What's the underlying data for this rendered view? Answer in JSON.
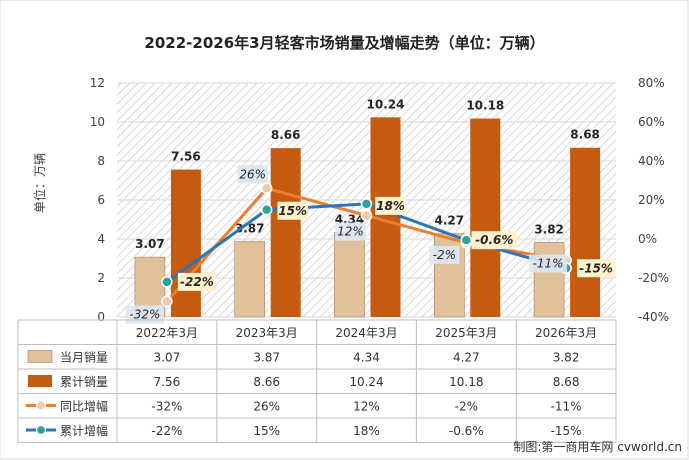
{
  "chart_data": {
    "type": "bar",
    "title": "2022-2026年3月轻客市场销量及增幅走势（单位：万辆）",
    "ylabel": "单位：万辆",
    "ylim": [
      0,
      12
    ],
    "y_ticks": [
      0,
      2,
      4,
      6,
      8,
      10,
      12
    ],
    "y2lim": [
      -40,
      80
    ],
    "y2_ticks": [
      "-40%",
      "-20%",
      "0%",
      "20%",
      "40%",
      "60%",
      "80%"
    ],
    "categories": [
      "2022年3月",
      "2023年3月",
      "2024年3月",
      "2025年3月",
      "2026年3月"
    ],
    "series": [
      {
        "name": "当月销量",
        "kind": "bar",
        "axis": "left",
        "color": "#E1C19A",
        "values": [
          3.07,
          3.87,
          4.34,
          4.27,
          3.82
        ],
        "labels": [
          "3.07",
          "3.87",
          "4.34",
          "4.27",
          "3.82"
        ]
      },
      {
        "name": "累计销量",
        "kind": "bar",
        "axis": "left",
        "color": "#C55A11",
        "values": [
          7.56,
          8.66,
          10.24,
          10.18,
          8.68
        ],
        "labels": [
          "7.56",
          "8.66",
          "10.24",
          "10.18",
          "8.68"
        ]
      },
      {
        "name": "同比增幅",
        "kind": "line",
        "axis": "right",
        "color": "#ED7D31",
        "values": [
          -32,
          26,
          12,
          -2,
          -11
        ],
        "labels": [
          "-32%",
          "26%",
          "12%",
          "-2%",
          "-11%"
        ]
      },
      {
        "name": "累计增幅",
        "kind": "line",
        "axis": "right",
        "color": "#2E75B6",
        "values": [
          -22,
          15,
          18,
          -0.6,
          -15
        ],
        "labels": [
          "-22%",
          "15%",
          "18%",
          "-0.6%",
          "-15%"
        ]
      }
    ],
    "table": {
      "rows": [
        {
          "series": "当月销量",
          "cells": [
            "3.07",
            "3.87",
            "4.34",
            "4.27",
            "3.82"
          ]
        },
        {
          "series": "累计销量",
          "cells": [
            "7.56",
            "8.66",
            "10.24",
            "10.18",
            "8.68"
          ]
        },
        {
          "series": "同比增幅",
          "cells": [
            "-32%",
            "26%",
            "12%",
            "-2%",
            "-11%"
          ]
        },
        {
          "series": "累计增幅",
          "cells": [
            "-22%",
            "15%",
            "18%",
            "-0.6%",
            "-15%"
          ]
        }
      ]
    },
    "source": "制图:第一商用车网 cvworld.cn"
  }
}
